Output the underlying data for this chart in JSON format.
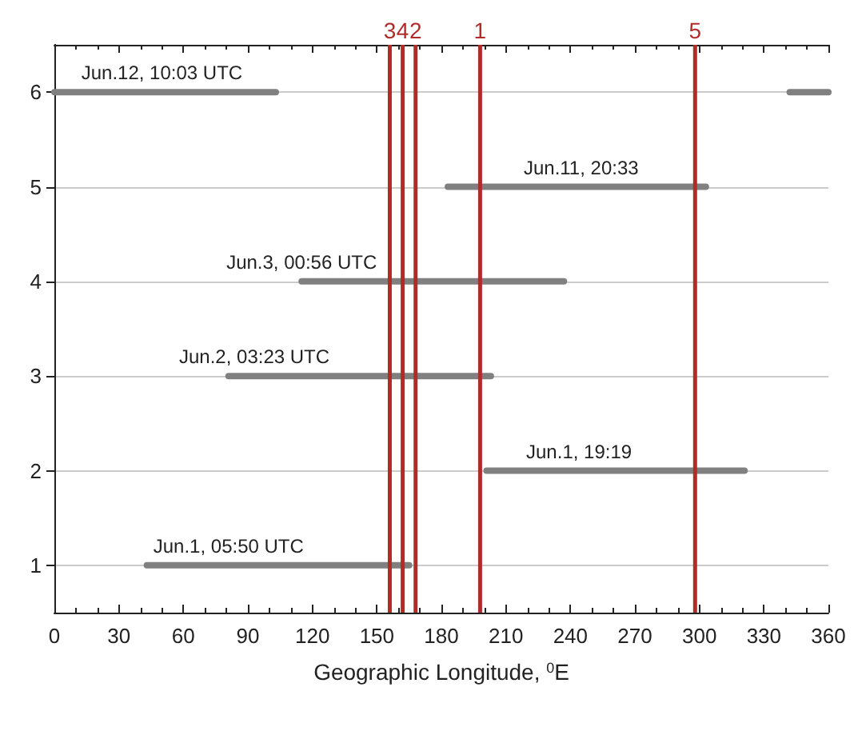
{
  "chart_data": {
    "type": "line",
    "xlabel": "Geographic Longitude, $^{0}$E",
    "xlim": [
      0,
      360
    ],
    "xticks": [
      0,
      30,
      60,
      90,
      120,
      150,
      180,
      210,
      240,
      270,
      300,
      330,
      360
    ],
    "ylim": [
      0.5,
      6.5
    ],
    "yticks": [
      1,
      2,
      3,
      4,
      5,
      6
    ],
    "grid": "y",
    "marker": "none",
    "line_style": "solid",
    "legend": false,
    "series": [
      {
        "color": "#808080",
        "x": [
          0,
          103
        ],
        "values": [
          6,
          6
        ]
      },
      {
        "color": "#808080",
        "x": [
          342,
          360
        ],
        "values": [
          6,
          6
        ]
      },
      {
        "color": "#808080",
        "x": [
          183,
          303
        ],
        "values": [
          5,
          5
        ]
      },
      {
        "color": "#808080",
        "x": [
          115,
          237
        ],
        "values": [
          4,
          4
        ]
      },
      {
        "color": "#808080",
        "x": [
          81,
          203
        ],
        "values": [
          3,
          3
        ]
      },
      {
        "color": "#808080",
        "x": [
          201,
          321
        ],
        "values": [
          2,
          2
        ]
      },
      {
        "color": "#808080",
        "x": [
          43,
          165
        ],
        "values": [
          1,
          1
        ]
      },
      {
        "name": "3",
        "color": "#b22b2b",
        "x": [
          156,
          156
        ],
        "values": [
          0.5,
          6.5
        ]
      },
      {
        "name": "4",
        "color": "#b22b2b",
        "x": [
          162,
          162
        ],
        "values": [
          0.5,
          6.5
        ]
      },
      {
        "name": "2",
        "color": "#b22b2b",
        "x": [
          168,
          168
        ],
        "values": [
          0.5,
          6.5
        ]
      },
      {
        "name": "1",
        "color": "#b22b2b",
        "x": [
          198,
          198
        ],
        "values": [
          0.5,
          6.5
        ]
      },
      {
        "name": "5",
        "color": "#b22b2b",
        "x": [
          298,
          298
        ],
        "values": [
          0.5,
          6.5
        ]
      }
    ],
    "annotations": [
      {
        "text": "Jun.12, 10:03 UTC",
        "x": 50,
        "y": 6
      },
      {
        "text": "Jun.11, 20:33",
        "x": 245,
        "y": 5
      },
      {
        "text": "Jun.3, 00:56 UTC",
        "x": 115,
        "y": 4
      },
      {
        "text": "Jun.2, 03:23 UTC",
        "x": 93,
        "y": 3
      },
      {
        "text": "Jun.1, 19:19",
        "x": 244,
        "y": 2
      },
      {
        "text": "Jun.1, 05:50 UTC",
        "x": 81,
        "y": 1
      }
    ]
  }
}
